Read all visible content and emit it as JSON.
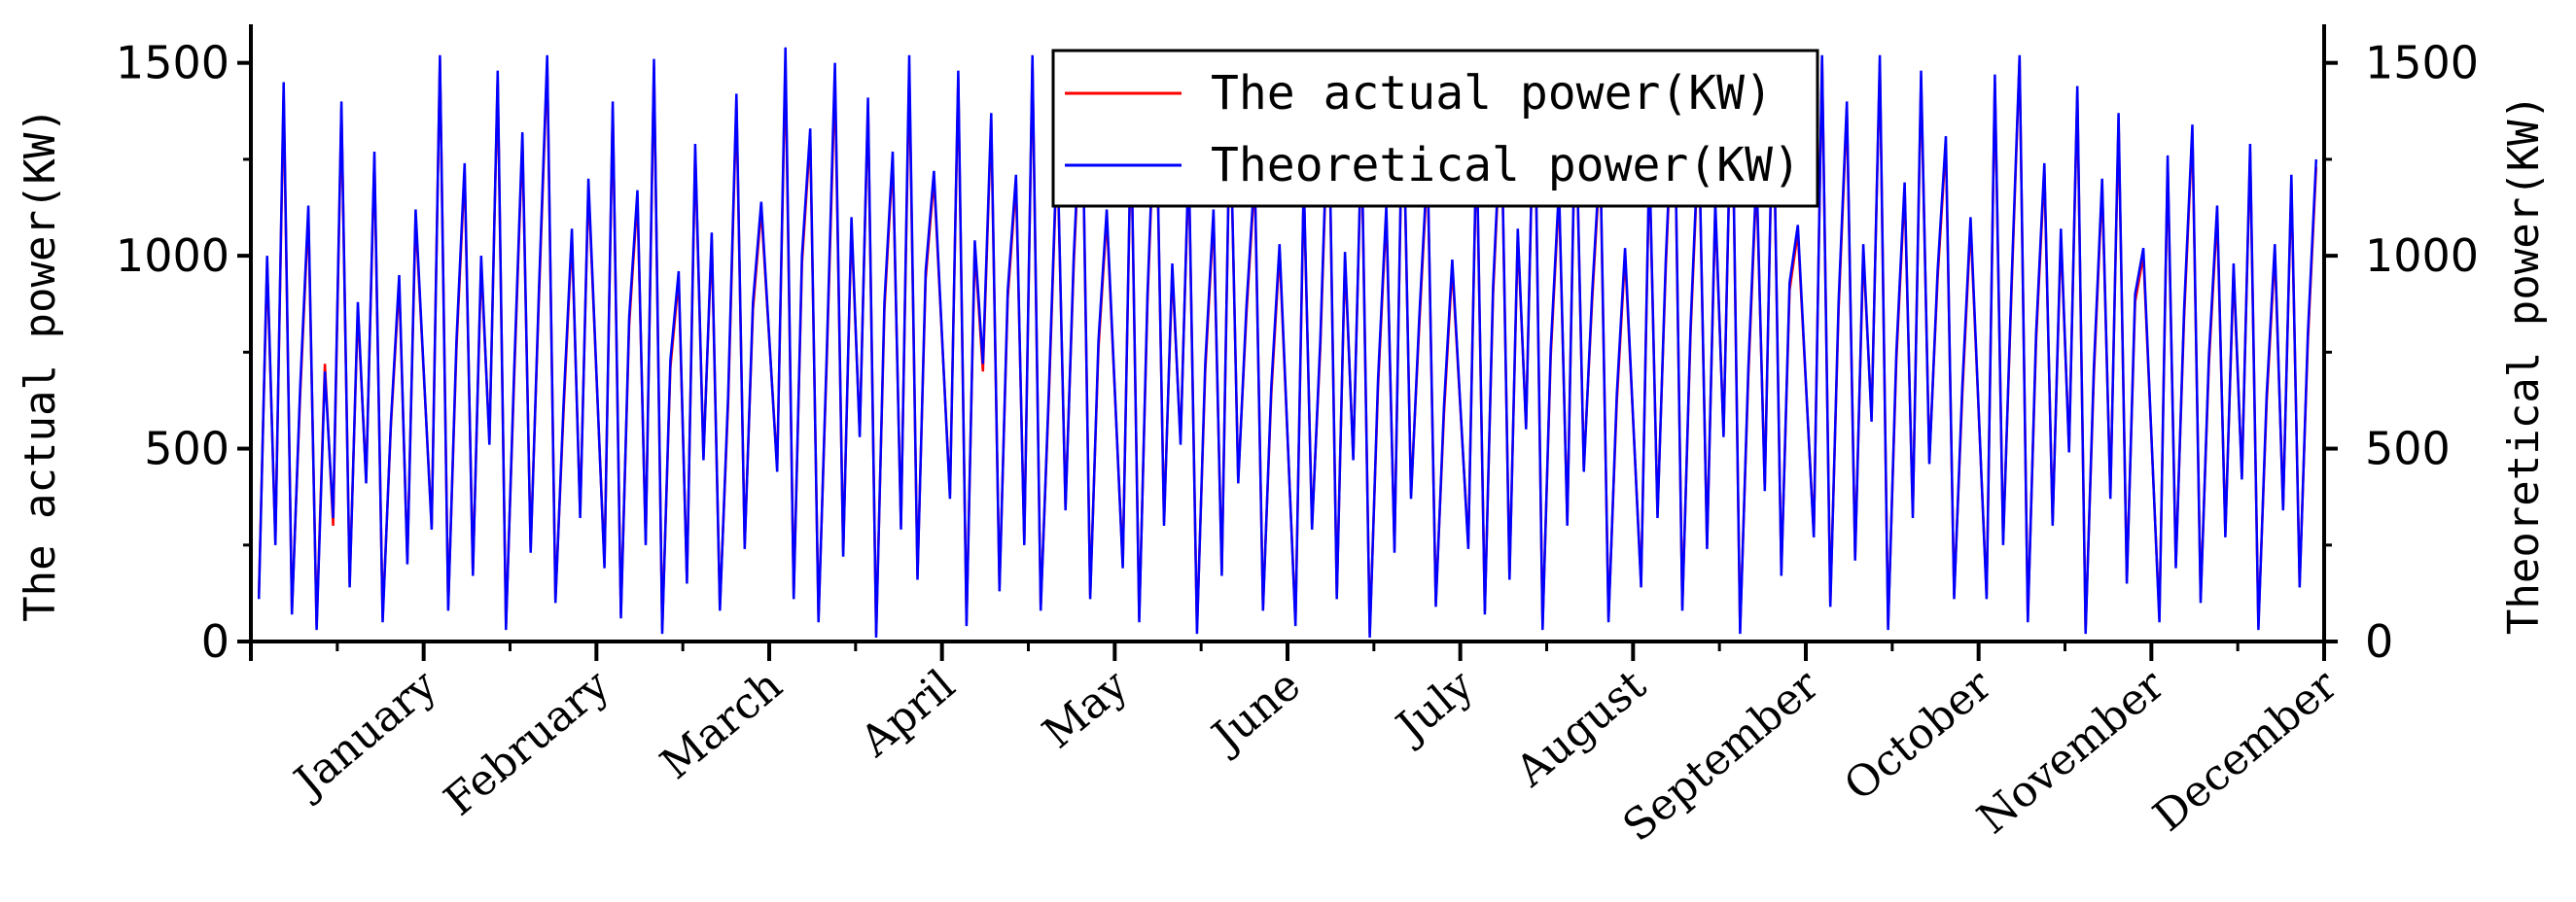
{
  "chart_data": {
    "type": "line",
    "ylabel_left": "The actual power(KW)",
    "ylabel_right": "Theoretical power(KW)",
    "ylim": [
      0,
      1600
    ],
    "yticks": [
      0,
      500,
      1000,
      1500
    ],
    "ytick_labels": [
      "0",
      "500",
      "1000",
      "1500"
    ],
    "x_categories": [
      "January",
      "February",
      "March",
      "April",
      "May",
      "June",
      "July",
      "August",
      "September",
      "October",
      "November",
      "December"
    ],
    "legend_placement": "top-center",
    "series": [
      {
        "name": "The actual power(KW)",
        "color": "#ff0000",
        "values_by_month": {
          "January": [
            120,
            980,
            260,
            1420,
            80,
            640,
            1110,
            40,
            720,
            300,
            1380,
            150,
            860,
            420,
            1250,
            60,
            560,
            930,
            210,
            1100
          ],
          "February": [
            300,
            1510,
            90,
            760,
            1220,
            180,
            980,
            520,
            1460,
            40,
            680,
            1300,
            240,
            890,
            1500,
            110,
            600,
            1050,
            330,
            1180
          ],
          "March": [
            200,
            1380,
            70,
            820,
            1150,
            260,
            1490,
            30,
            710,
            940,
            160,
            1270,
            480,
            1040,
            90,
            620,
            1400,
            250,
            860,
            1120
          ],
          "April": [
            450,
            1500,
            120,
            980,
            1310,
            60,
            720,
            1460,
            230,
            1080,
            540,
            1390,
            20,
            860,
            1250,
            300,
            1480,
            170,
            940,
            1200
          ],
          "May": [
            380,
            1460,
            50,
            1020,
            700,
            1350,
            140,
            890,
            1190,
            260,
            1500,
            90,
            640,
            1280,
            350,
            980,
            1440,
            120,
            760,
            1100
          ],
          "June": [
            200,
            1320,
            60,
            880,
            1460,
            310,
            960,
            520,
            1240,
            30,
            700,
            1100,
            180,
            1380,
            420,
            850,
            1200,
            90,
            640,
            1010
          ],
          "July": [
            50,
            1180,
            300,
            760,
            1420,
            120,
            990,
            480,
            1300,
            20,
            660,
            1110,
            240,
            1450,
            380,
            820,
            1230,
            100,
            590,
            970
          ],
          "August": [
            250,
            1290,
            80,
            900,
            1360,
            170,
            1050,
            560,
            1480,
            40,
            740,
            1160,
            310,
            1400,
            450,
            880,
            1250,
            60,
            620,
            1000
          ],
          "September": [
            150,
            1240,
            330,
            970,
            1470,
            90,
            800,
            1310,
            250,
            1120,
            540,
            1490,
            30,
            690,
            1200,
            400,
            1440,
            180,
            910,
            1060
          ],
          "October": [
            280,
            1510,
            100,
            860,
            1380,
            220,
            1010,
            580,
            1500,
            40,
            730,
            1170,
            330,
            1460,
            470,
            940,
            1290,
            120,
            640,
            1080
          ],
          "November": [
            120,
            1450,
            260,
            900,
            1510,
            60,
            780,
            1220,
            310,
            1050,
            500,
            1420,
            30,
            690,
            1180,
            380,
            1350,
            160,
            880,
            1000
          ],
          "December": [
            60,
            1240,
            200,
            840,
            1320,
            110,
            720,
            1110,
            280,
            960,
            430,
            1270,
            40,
            620,
            1010,
            350,
            1190,
            150,
            780,
            1230
          ]
        }
      },
      {
        "name": "Theoretical power(KW)",
        "color": "#0000ff",
        "values_by_month": {
          "January": [
            110,
            1000,
            250,
            1450,
            70,
            660,
            1130,
            30,
            700,
            320,
            1400,
            140,
            880,
            410,
            1270,
            50,
            570,
            950,
            200,
            1120
          ],
          "February": [
            290,
            1520,
            80,
            780,
            1240,
            170,
            1000,
            510,
            1480,
            30,
            700,
            1320,
            230,
            910,
            1520,
            100,
            620,
            1070,
            320,
            1200
          ],
          "March": [
            190,
            1400,
            60,
            840,
            1170,
            250,
            1510,
            20,
            730,
            960,
            150,
            1290,
            470,
            1060,
            80,
            640,
            1420,
            240,
            880,
            1140
          ],
          "April": [
            440,
            1540,
            110,
            1000,
            1330,
            50,
            740,
            1500,
            220,
            1100,
            530,
            1410,
            10,
            880,
            1270,
            290,
            1520,
            160,
            960,
            1220
          ],
          "May": [
            370,
            1480,
            40,
            1040,
            720,
            1370,
            130,
            910,
            1210,
            250,
            1520,
            80,
            660,
            1300,
            340,
            1000,
            1460,
            110,
            780,
            1120
          ],
          "June": [
            190,
            1340,
            50,
            900,
            1480,
            300,
            980,
            510,
            1260,
            20,
            720,
            1120,
            170,
            1400,
            410,
            870,
            1220,
            80,
            660,
            1030
          ],
          "July": [
            40,
            1200,
            290,
            780,
            1440,
            110,
            1010,
            470,
            1320,
            10,
            680,
            1130,
            230,
            1470,
            370,
            840,
            1250,
            90,
            610,
            990
          ],
          "August": [
            240,
            1310,
            70,
            920,
            1380,
            160,
            1070,
            550,
            1500,
            30,
            760,
            1180,
            300,
            1420,
            440,
            900,
            1270,
            50,
            640,
            1020
          ],
          "September": [
            140,
            1260,
            320,
            990,
            1490,
            80,
            820,
            1330,
            240,
            1140,
            530,
            1510,
            20,
            710,
            1220,
            390,
            1460,
            170,
            930,
            1080
          ],
          "October": [
            270,
            1520,
            90,
            880,
            1400,
            210,
            1030,
            570,
            1520,
            30,
            750,
            1190,
            320,
            1480,
            460,
            960,
            1310,
            110,
            660,
            1100
          ],
          "November": [
            110,
            1470,
            250,
            920,
            1520,
            50,
            800,
            1240,
            300,
            1070,
            490,
            1440,
            20,
            710,
            1200,
            370,
            1370,
            150,
            900,
            1020
          ],
          "December": [
            50,
            1260,
            190,
            860,
            1340,
            100,
            740,
            1130,
            270,
            980,
            420,
            1290,
            30,
            640,
            1030,
            340,
            1210,
            140,
            800,
            1250
          ]
        }
      }
    ]
  }
}
